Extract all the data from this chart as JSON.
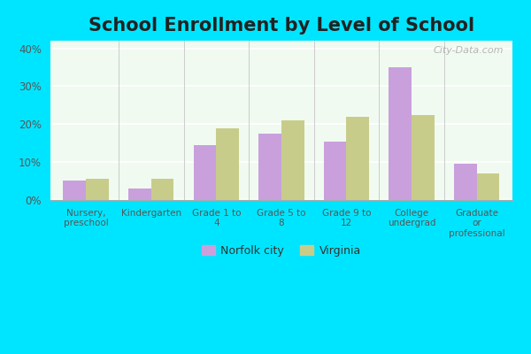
{
  "title": "School Enrollment by Level of School",
  "categories": [
    "Nursery,\npreschool",
    "Kindergarten",
    "Grade 1 to\n4",
    "Grade 5 to\n8",
    "Grade 9 to\n12",
    "College\nundergrad",
    "Graduate\nor\nprofessional"
  ],
  "norfolk_values": [
    5.0,
    3.0,
    14.5,
    17.5,
    15.5,
    35.0,
    9.5
  ],
  "virginia_values": [
    5.5,
    5.5,
    19.0,
    21.0,
    22.0,
    22.5,
    7.0
  ],
  "norfolk_color": "#c9a0dc",
  "virginia_color": "#c8cc8a",
  "title_fontsize": 15,
  "legend_labels": [
    "Norfolk city",
    "Virginia"
  ],
  "ylim": [
    0,
    42
  ],
  "yticks": [
    0,
    10,
    20,
    30,
    40
  ],
  "ytick_labels": [
    "0%",
    "10%",
    "20%",
    "30%",
    "40%"
  ],
  "cyan_border": "#00e5ff",
  "white_area": "#ffffff",
  "watermark": "City-Data.com",
  "bar_width": 0.35
}
